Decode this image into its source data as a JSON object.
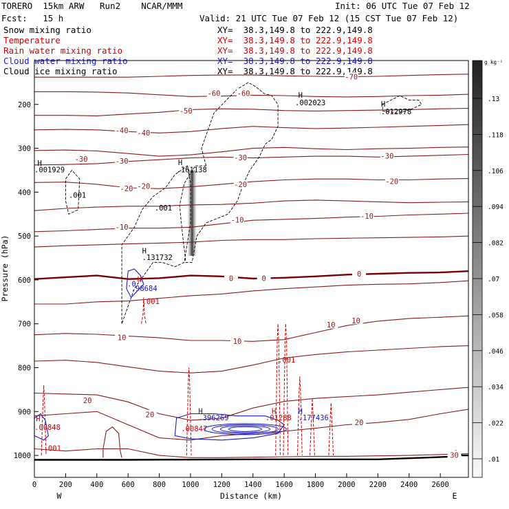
{
  "header": {
    "model": "TORERO  15km ARW   Run2    NCAR/MMM",
    "init": "Init: 06 UTC Tue 07 Feb 12",
    "fcst": "Fcst:   15 h",
    "valid": "Valid: 21 UTC Tue 07 Feb 12 (15 CST Tue 07 Feb 12)"
  },
  "legend": [
    {
      "name": "Snow mixing ratio",
      "xy": "XY=  38.3,149.8 to 222.9,149.8",
      "color": "#000000"
    },
    {
      "name": "Temperature",
      "xy": "XY=  38.3,149.8 to 222.9,149.8",
      "color": "#d40000"
    },
    {
      "name": "Rain water mixing ratio",
      "xy": "XY=  38.3,149.8 to 222.9,149.8",
      "color": "#d40000"
    },
    {
      "name": "Cloud water mixing ratio",
      "xy": "XY=  38.3,149.8 to 222.9,149.8",
      "color": "#1a1acc"
    },
    {
      "name": "Cloud ice mixing ratio",
      "xy": "XY=  38.3,149.8 to 222.9,149.8",
      "color": "#000000"
    }
  ],
  "chart_data": {
    "type": "cross-section",
    "xlabel": "Distance (km)",
    "ylabel": "Pressure (hPa)",
    "xlim": [
      0,
      2780
    ],
    "ylim": [
      1050,
      100
    ],
    "x_ticks": [
      0,
      200,
      400,
      600,
      800,
      1000,
      1200,
      1400,
      1600,
      1800,
      2000,
      2200,
      2400,
      2600
    ],
    "y_ticks": [
      200,
      300,
      400,
      500,
      600,
      700,
      800,
      900,
      1000
    ],
    "x_end_labels": {
      "left": "W",
      "right": "E"
    },
    "colorbar": {
      "unit": "g kg⁻¹",
      "labels": [
        ".13",
        ".118",
        ".106",
        ".094",
        ".082",
        ".07",
        ".058",
        ".046",
        ".034",
        ".022",
        ".01"
      ]
    },
    "temperature_labels": [
      {
        "text": "-70",
        "x": 2030,
        "p": 138
      },
      {
        "text": "-60",
        "x": 1150,
        "p": 175
      },
      {
        "text": "-60",
        "x": 1340,
        "p": 175
      },
      {
        "text": "-50",
        "x": 970,
        "p": 215
      },
      {
        "text": "-40",
        "x": 560,
        "p": 260
      },
      {
        "text": "-40",
        "x": 700,
        "p": 265
      },
      {
        "text": "-30",
        "x": 300,
        "p": 325
      },
      {
        "text": "-30",
        "x": 560,
        "p": 330
      },
      {
        "text": "-30",
        "x": 1320,
        "p": 322
      },
      {
        "text": "-30",
        "x": 2260,
        "p": 318
      },
      {
        "text": "-20",
        "x": 590,
        "p": 392
      },
      {
        "text": "-20",
        "x": 700,
        "p": 387
      },
      {
        "text": "-20",
        "x": 1320,
        "p": 383
      },
      {
        "text": "-20",
        "x": 2290,
        "p": 376
      },
      {
        "text": "-10",
        "x": 560,
        "p": 480
      },
      {
        "text": "-10",
        "x": 1300,
        "p": 464
      },
      {
        "text": "-10",
        "x": 2130,
        "p": 455
      },
      {
        "text": "0",
        "x": 1260,
        "p": 597
      },
      {
        "text": "0",
        "x": 1470,
        "p": 597
      },
      {
        "text": "0",
        "x": 2080,
        "p": 587
      },
      {
        "text": "10",
        "x": 560,
        "p": 732
      },
      {
        "text": "10",
        "x": 1300,
        "p": 740
      },
      {
        "text": "10",
        "x": 1900,
        "p": 703
      },
      {
        "text": "10",
        "x": 2060,
        "p": 693
      },
      {
        "text": "20",
        "x": 340,
        "p": 875
      },
      {
        "text": "20",
        "x": 740,
        "p": 907
      },
      {
        "text": "20",
        "x": 2080,
        "p": 925
      },
      {
        "text": "30",
        "x": 2690,
        "p": 1000
      }
    ],
    "field_labels": [
      {
        "text": "H",
        "x": 20,
        "p": 340,
        "color": "#000000"
      },
      {
        "text": ".001929",
        "x": 0,
        "p": 355,
        "color": "#000000"
      },
      {
        "text": ".001",
        "x": 220,
        "p": 413,
        "color": "#000000"
      },
      {
        "text": "H",
        "x": 920,
        "p": 338,
        "color": "#000000"
      },
      {
        "text": ".161138",
        "x": 910,
        "p": 355,
        "color": "#000000"
      },
      {
        "text": ".001",
        "x": 770,
        "p": 442,
        "color": "#000000"
      },
      {
        "text": "H",
        "x": 690,
        "p": 540,
        "color": "#000000"
      },
      {
        "text": ".131732",
        "x": 690,
        "p": 555,
        "color": "#000000"
      },
      {
        "text": "H",
        "x": 1690,
        "p": 185,
        "color": "#000000"
      },
      {
        "text": ".002023",
        "x": 1670,
        "p": 202,
        "color": "#000000"
      },
      {
        "text": "H",
        "x": 2220,
        "p": 205,
        "color": "#000000"
      },
      {
        "text": ".012978",
        "x": 2220,
        "p": 222,
        "color": "#000000"
      },
      {
        "text": "H",
        "x": 660,
        "p": 605,
        "color": "#d40000"
      },
      {
        "text": ".0",
        "x": 595,
        "p": 615,
        "color": "#1a1acc"
      },
      {
        "text": ".98684",
        "x": 620,
        "p": 625,
        "color": "#1a1acc"
      },
      {
        "text": ".001",
        "x": 690,
        "p": 655,
        "color": "#d40000"
      },
      {
        "text": ".001",
        "x": 1560,
        "p": 788,
        "color": "#d40000"
      },
      {
        "text": "H",
        "x": 10,
        "p": 922,
        "color": "#d40000"
      },
      {
        "text": ".00848",
        "x": 0,
        "p": 942,
        "color": "#d40000"
      },
      {
        "text": ".001",
        "x": 60,
        "p": 990,
        "color": "#d40000"
      },
      {
        "text": "H",
        "x": 1050,
        "p": 905,
        "color": "#1a1acc"
      },
      {
        "text": ".396269",
        "x": 1050,
        "p": 920,
        "color": "#1a1acc"
      },
      {
        "text": ".00847",
        "x": 940,
        "p": 945,
        "color": "#d40000"
      },
      {
        "text": "H",
        "x": 1520,
        "p": 905,
        "color": "#d40000"
      },
      {
        "text": ".01288",
        "x": 1480,
        "p": 920,
        "color": "#d40000"
      },
      {
        "text": "H",
        "x": 1690,
        "p": 905,
        "color": "#1a1acc"
      },
      {
        "text": ".177436",
        "x": 1690,
        "p": 920,
        "color": "#1a1acc"
      }
    ]
  }
}
